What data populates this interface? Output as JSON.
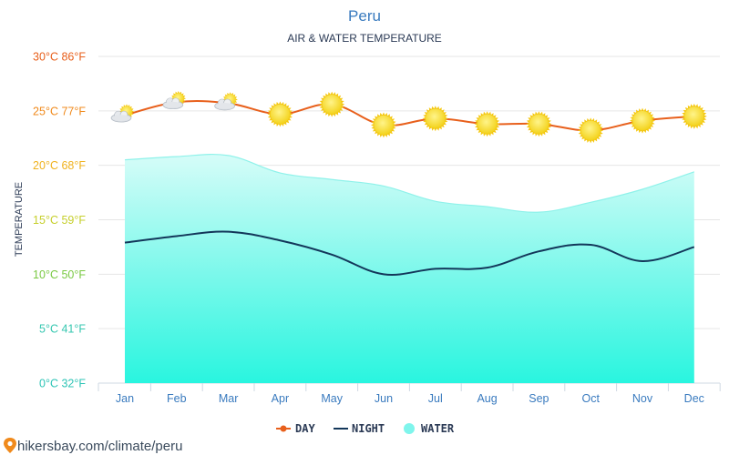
{
  "chart_data": {
    "type": "line",
    "title": "Peru",
    "subtitle": "AIR & WATER TEMPERATURE",
    "ylabel": "TEMPERATURE",
    "ylim": [
      0,
      30
    ],
    "grid": true,
    "legend_position": "bottom",
    "y_ticks": [
      {
        "label": "0°C 32°F",
        "value": 0,
        "color": "#2ec4b6"
      },
      {
        "label": "5°C 41°F",
        "value": 5,
        "color": "#36c7b0"
      },
      {
        "label": "10°C 50°F",
        "value": 10,
        "color": "#7ac943"
      },
      {
        "label": "15°C 59°F",
        "value": 15,
        "color": "#c6cf2c"
      },
      {
        "label": "20°C 68°F",
        "value": 20,
        "color": "#f0b21e"
      },
      {
        "label": "25°C 77°F",
        "value": 25,
        "color": "#f08a1c"
      },
      {
        "label": "30°C 86°F",
        "value": 30,
        "color": "#e8601c"
      }
    ],
    "categories": [
      "Jan",
      "Feb",
      "Mar",
      "Apr",
      "May",
      "Jun",
      "Jul",
      "Aug",
      "Sep",
      "Oct",
      "Nov",
      "Dec"
    ],
    "series": [
      {
        "name": "DAY",
        "color": "#e8601c",
        "values": [
          24.6,
          25.8,
          25.7,
          24.7,
          25.6,
          23.7,
          24.3,
          23.8,
          23.8,
          23.2,
          24.1,
          24.5
        ]
      },
      {
        "name": "NIGHT",
        "color": "#13375a",
        "values": [
          12.9,
          13.5,
          13.9,
          13.1,
          11.8,
          10.0,
          10.5,
          10.6,
          12.1,
          12.7,
          11.2,
          12.5
        ]
      },
      {
        "name": "WATER",
        "color": "#7ff5ec",
        "values": [
          20.5,
          20.8,
          20.9,
          19.3,
          18.7,
          18.1,
          16.7,
          16.2,
          15.7,
          16.6,
          17.8,
          19.4
        ]
      }
    ],
    "weather_icons": [
      "partly-cloudy-icon",
      "partly-cloudy-icon",
      "partly-cloudy-icon",
      "sun-icon",
      "sun-icon",
      "sun-icon",
      "sun-icon",
      "sun-icon",
      "sun-icon",
      "sun-icon",
      "sun-icon",
      "sun-icon"
    ]
  },
  "footer": {
    "source_text": "hikersbay.com/climate/peru",
    "pin_icon": "location-pin-icon"
  }
}
